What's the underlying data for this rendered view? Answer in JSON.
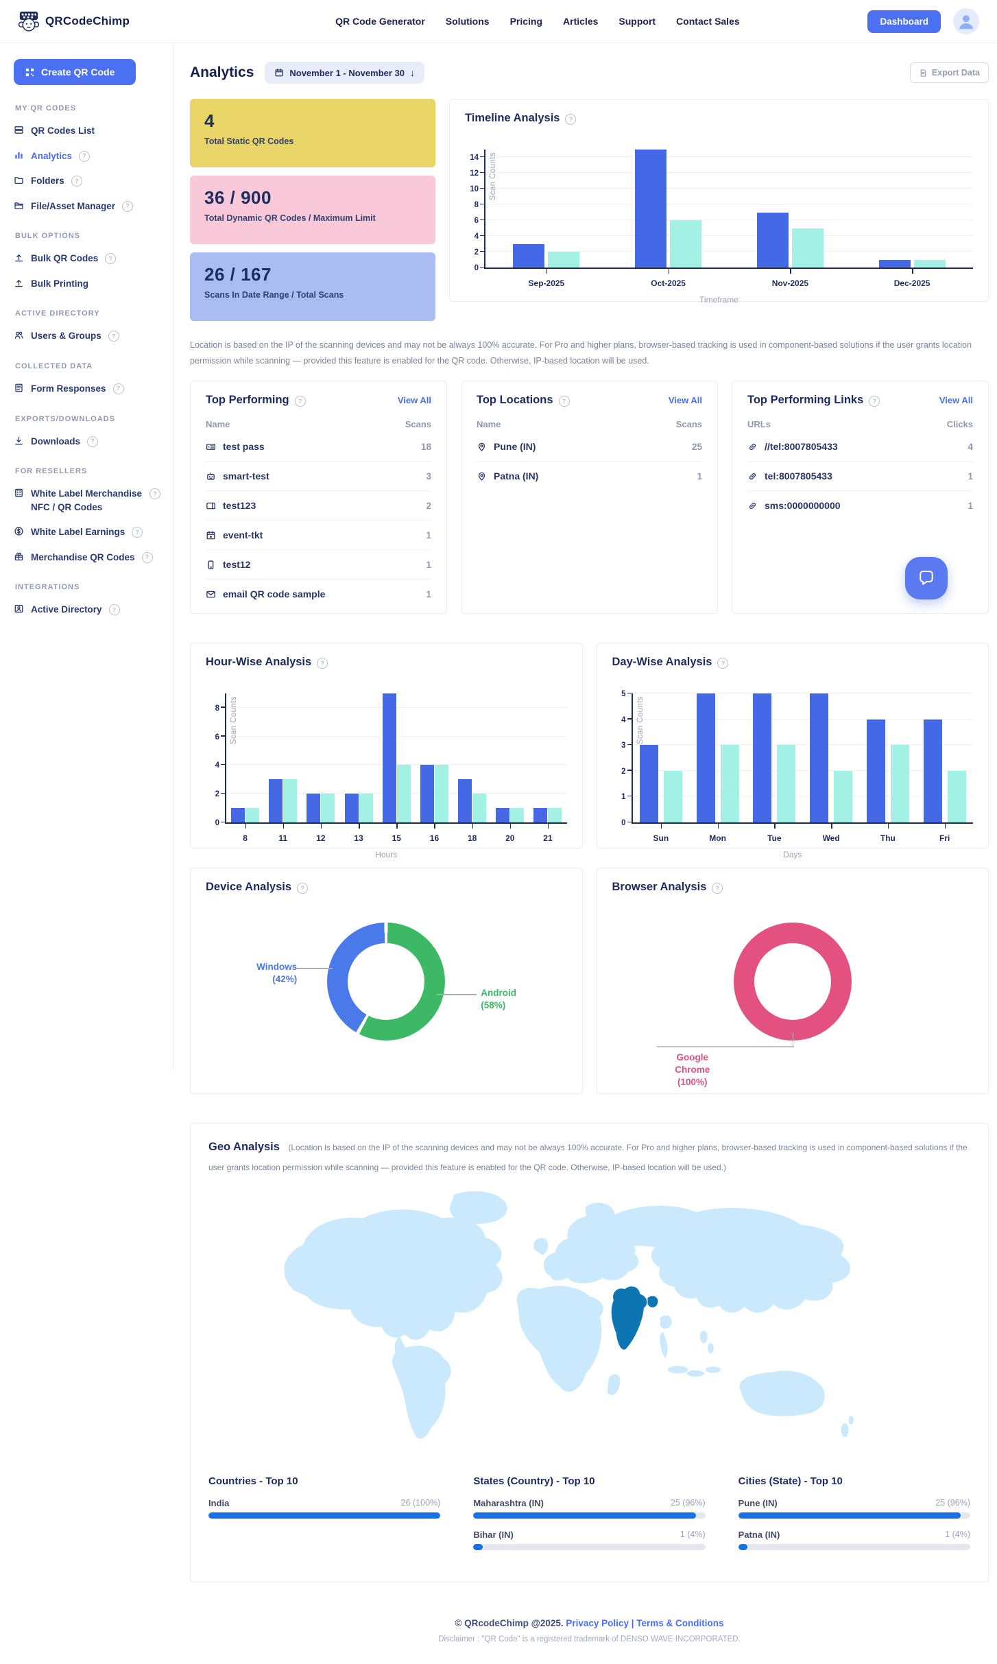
{
  "header": {
    "brand": "QRCodeChimp",
    "nav": [
      "QR Code Generator",
      "Solutions",
      "Pricing",
      "Articles",
      "Support",
      "Contact Sales"
    ],
    "dashboard_label": "Dashboard"
  },
  "sidebar": {
    "create_button": "Create QR Code",
    "sections": [
      {
        "title": "MY QR CODES",
        "items": [
          {
            "label": "QR Codes List",
            "icon": "list"
          },
          {
            "label": "Analytics",
            "icon": "chart",
            "help": true,
            "active": true
          },
          {
            "label": "Folders",
            "icon": "folder",
            "help": true
          },
          {
            "label": "File/Asset Manager",
            "icon": "file",
            "help": true
          }
        ]
      },
      {
        "title": "BULK OPTIONS",
        "items": [
          {
            "label": "Bulk QR Codes",
            "icon": "upload",
            "help": true
          },
          {
            "label": "Bulk Printing",
            "icon": "upload"
          }
        ]
      },
      {
        "title": "ACTIVE DIRECTORY",
        "items": [
          {
            "label": "Users & Groups",
            "icon": "users",
            "help": true
          }
        ]
      },
      {
        "title": "COLLECTED DATA",
        "items": [
          {
            "label": "Form Responses",
            "icon": "form",
            "help": true
          }
        ]
      },
      {
        "title": "EXPORTS/DOWNLOADS",
        "items": [
          {
            "label": "Downloads",
            "icon": "download",
            "help": true
          }
        ]
      },
      {
        "title": "FOR RESELLERS",
        "items": [
          {
            "label": "White Label Merchandise NFC / QR Codes",
            "icon": "building",
            "help": true
          },
          {
            "label": "White Label Earnings",
            "icon": "dollar",
            "help": true
          },
          {
            "label": "Merchandise QR Codes",
            "icon": "gift",
            "help": true
          }
        ]
      },
      {
        "title": "INTEGRATIONS",
        "items": [
          {
            "label": "Active Directory",
            "icon": "ad",
            "help": true
          }
        ]
      }
    ]
  },
  "page": {
    "title": "Analytics",
    "date_range": "November 1 - November 30",
    "export_label": "Export Data"
  },
  "stats": [
    {
      "value": "4",
      "label": "Total Static QR Codes",
      "bg": "#e9d468"
    },
    {
      "value": "36 / 900",
      "label": "Total Dynamic QR Codes / Maximum Limit",
      "bg": "#f9c9d9"
    },
    {
      "value": "26 / 167",
      "label": "Scans In Date Range / Total Scans",
      "bg": "#aabdf2"
    }
  ],
  "disclaimer": "Location is based on the IP of the scanning devices and may not be always 100% accurate. For Pro and higher plans, browser-based tracking is used in component-based solutions if the user grants location permission while scanning — provided this feature is enabled for the QR code. Otherwise, IP-based location will be used.",
  "lists": {
    "top_performing": {
      "title": "Top Performing",
      "view_all": "View All",
      "columns": [
        "Name",
        "Scans"
      ],
      "rows": [
        {
          "icon": "pass",
          "name": "test pass",
          "value": "18"
        },
        {
          "icon": "robot",
          "name": "smart-test",
          "value": "3"
        },
        {
          "icon": "card",
          "name": "test123",
          "value": "2"
        },
        {
          "icon": "calendar",
          "name": "event-tkt",
          "value": "1"
        },
        {
          "icon": "phone",
          "name": "test12",
          "value": "1"
        },
        {
          "icon": "email",
          "name": "email QR code sample",
          "value": "1"
        }
      ]
    },
    "top_locations": {
      "title": "Top Locations",
      "view_all": "View All",
      "columns": [
        "Name",
        "Scans"
      ],
      "rows": [
        {
          "icon": "pin",
          "name": "Pune (IN)",
          "value": "25"
        },
        {
          "icon": "pin",
          "name": "Patna (IN)",
          "value": "1"
        }
      ]
    },
    "top_links": {
      "title": "Top Performing Links",
      "view_all": "View All",
      "columns": [
        "URLs",
        "Clicks"
      ],
      "rows": [
        {
          "icon": "link",
          "name": "//tel:8007805433",
          "value": "4"
        },
        {
          "icon": "link",
          "name": "tel:8007805433",
          "value": "1"
        },
        {
          "icon": "link",
          "name": "sms:0000000000",
          "value": "1"
        }
      ]
    }
  },
  "chart_data": [
    {
      "id": "timeline",
      "type": "bar",
      "title": "Timeline Analysis",
      "categories": [
        "Sep-2025",
        "Oct-2025",
        "Nov-2025",
        "Dec-2025"
      ],
      "series": [
        {
          "color": "#4468e6",
          "values": [
            3,
            15,
            7,
            1
          ]
        },
        {
          "color": "#a3f1e4",
          "values": [
            2,
            6,
            5,
            1
          ]
        }
      ],
      "xlabel": "Timeframe",
      "ylabel": "Scan Counts",
      "yticks": [
        0,
        2,
        4,
        6,
        8,
        10,
        12,
        14
      ],
      "ymax": 15,
      "grid": true,
      "legend": "none"
    },
    {
      "id": "hour_wise",
      "type": "bar",
      "title": "Hour-Wise Analysis",
      "categories": [
        "8",
        "11",
        "12",
        "13",
        "15",
        "16",
        "18",
        "20",
        "21"
      ],
      "series": [
        {
          "color": "#4468e6",
          "values": [
            1,
            3,
            2,
            2,
            9,
            4,
            3,
            1,
            1
          ]
        },
        {
          "color": "#a3f1e4",
          "values": [
            1,
            3,
            2,
            2,
            4,
            4,
            2,
            1,
            1
          ]
        }
      ],
      "xlabel": "Hours",
      "ylabel": "Scan Counts",
      "yticks": [
        0,
        2,
        4,
        6,
        8
      ],
      "ymax": 9,
      "grid": true,
      "legend": "none"
    },
    {
      "id": "day_wise",
      "type": "bar",
      "title": "Day-Wise Analysis",
      "categories": [
        "Sun",
        "Mon",
        "Tue",
        "Wed",
        "Thu",
        "Fri"
      ],
      "series": [
        {
          "color": "#4468e6",
          "values": [
            3,
            5,
            5,
            5,
            4,
            4
          ]
        },
        {
          "color": "#a3f1e4",
          "values": [
            2,
            3,
            3,
            2,
            3,
            2
          ]
        }
      ],
      "xlabel": "Days",
      "ylabel": "Scan Counts",
      "yticks": [
        0,
        1,
        2,
        3,
        4,
        5
      ],
      "ymax": 5,
      "grid": true,
      "legend": "none"
    },
    {
      "id": "device",
      "type": "pie",
      "title": "Device Analysis",
      "slices": [
        {
          "label": "Android",
          "pct": 58,
          "color": "#3db865"
        },
        {
          "label": "Windows",
          "pct": 42,
          "color": "#4a79ea"
        }
      ]
    },
    {
      "id": "browser",
      "type": "pie",
      "title": "Browser Analysis",
      "slices": [
        {
          "label": "Google Chrome",
          "pct": 100,
          "color": "#e35181"
        }
      ]
    }
  ],
  "geo": {
    "title": "Geo Analysis",
    "note": "(Location is based on the IP of the scanning devices and may not be always 100% accurate. For Pro and higher plans, browser-based tracking is used in component-based solutions if the user grants location permission while scanning — provided this feature is enabled for the QR code. Otherwise, IP-based location will be used.)",
    "highlighted_country": "India",
    "columns": [
      {
        "title": "Countries - Top 10",
        "rows": [
          {
            "label": "India",
            "value": "26 (100%)",
            "pct": 100
          }
        ]
      },
      {
        "title": "States (Country) - Top 10",
        "rows": [
          {
            "label": "Maharashtra (IN)",
            "value": "25 (96%)",
            "pct": 96
          },
          {
            "label": "Bihar (IN)",
            "value": "1 (4%)",
            "pct": 4
          }
        ]
      },
      {
        "title": "Cities (State) - Top 10",
        "rows": [
          {
            "label": "Pune (IN)",
            "value": "25 (96%)",
            "pct": 96
          },
          {
            "label": "Patna (IN)",
            "value": "1 (4%)",
            "pct": 4
          }
        ]
      }
    ]
  },
  "footer": {
    "copyright": "© QRcodeChimp @2025.",
    "privacy": "Privacy Policy",
    "separator": "|",
    "terms": "Terms & Conditions",
    "disclaimer": "Disclaimer : \"QR Code\" is a registered trademark of DENSO WAVE INCORPORATED."
  },
  "floating_chat": {
    "icon": "chat-icon"
  },
  "colors": {
    "primary": "#4c70f2",
    "link": "#4a6cf7",
    "bar_primary": "#4468e6",
    "bar_secondary": "#a3f1e4",
    "geo_bar": "#1473e9",
    "map_land": "#cbe9fc",
    "map_highlight": "#0d76b2"
  }
}
